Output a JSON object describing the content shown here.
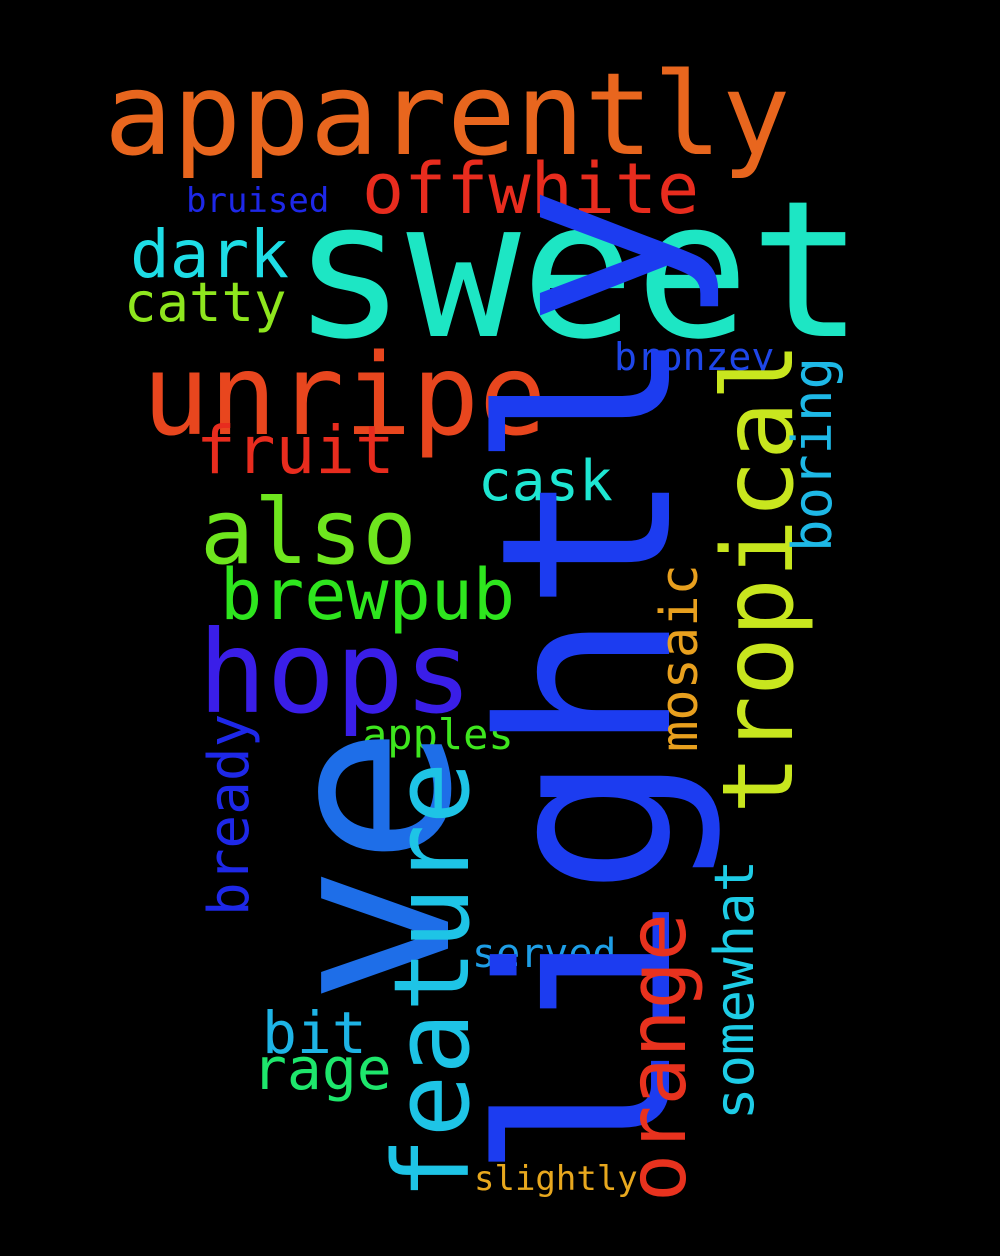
{
  "words": {
    "sweet": {
      "text": "sweet",
      "color": "#1de6c4"
    },
    "ve": {
      "text": "ve",
      "color": "#1e6ee8"
    },
    "lightly": {
      "text": "lightly",
      "color": "#1c3cf0"
    },
    "apparently": {
      "text": "apparently",
      "color": "#e8661e"
    },
    "unripe": {
      "text": "unripe",
      "color": "#e8461e"
    },
    "offwhite": {
      "text": "offwhite",
      "color": "#e82c1e"
    },
    "hops": {
      "text": "hops",
      "color": "#3a1ee8"
    },
    "feature": {
      "text": "feature",
      "color": "#1ec4e6"
    },
    "tropical": {
      "text": "tropical",
      "color": "#c8e61e"
    },
    "also": {
      "text": "also",
      "color": "#6ee61e"
    },
    "brewpub": {
      "text": "brewpub",
      "color": "#2ee61e"
    },
    "fruit": {
      "text": "fruit",
      "color": "#e82c1e"
    },
    "dark": {
      "text": "dark",
      "color": "#1edde6"
    },
    "catty": {
      "text": "catty",
      "color": "#8ee61e"
    },
    "orange": {
      "text": "orange",
      "color": "#e8321e"
    },
    "mosaic": {
      "text": "mosaic",
      "color": "#e8a01e"
    },
    "cask": {
      "text": "cask",
      "color": "#1ee6d2"
    },
    "boring": {
      "text": "boring",
      "color": "#1eb8e6"
    },
    "bronzey": {
      "text": "bronzey",
      "color": "#1e46e8"
    },
    "somewhat": {
      "text": "somewhat",
      "color": "#1ecce6"
    },
    "bready": {
      "text": "bready",
      "color": "#1e28e8"
    },
    "bit": {
      "text": "bit",
      "color": "#1eb4e6"
    },
    "rage": {
      "text": "rage",
      "color": "#1ee66c"
    },
    "apples": {
      "text": "apples",
      "color": "#3ee61e"
    },
    "served": {
      "text": "served",
      "color": "#1e9ee6"
    },
    "bruised": {
      "text": "bruised",
      "color": "#1e28e8"
    },
    "slightly": {
      "text": "slightly",
      "color": "#e8a81e"
    }
  }
}
